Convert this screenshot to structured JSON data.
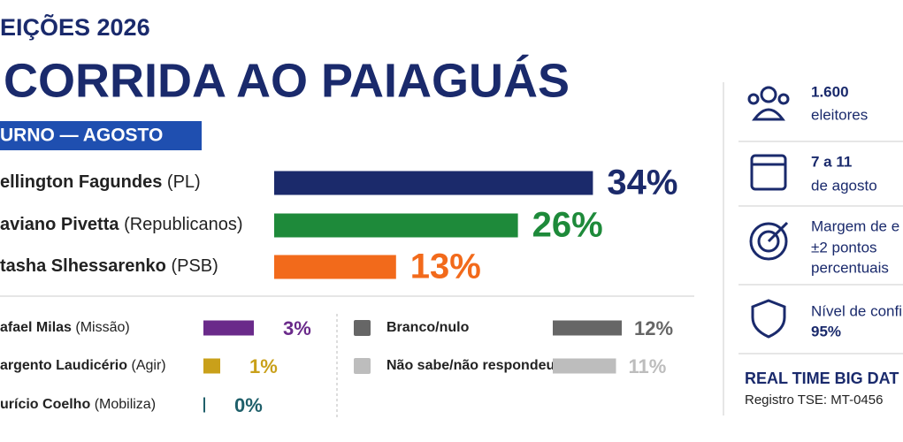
{
  "header": {
    "kicker": "EIÇÕES 2026",
    "title": "CORRIDA AO PAIAGUÁS",
    "banner": "URNO — AGOSTO"
  },
  "chart_data": [
    {
      "type": "bar",
      "orientation": "horizontal",
      "categories": [
        "ellington Fagundes",
        "aviano Pivetta",
        "tasha Slhessarenko"
      ],
      "parties": [
        "(PL)",
        "(Republicanos)",
        "(PSB)"
      ],
      "values": [
        34,
        26,
        13
      ],
      "value_labels": [
        "34%",
        "26%",
        "13%"
      ],
      "colors": [
        "#1b2a6b",
        "#1e8a3a",
        "#f26a1b"
      ]
    },
    {
      "type": "bar",
      "orientation": "horizontal",
      "categories": [
        "afael Milas",
        "argento Laudicério",
        "urício Coelho"
      ],
      "parties": [
        "(Missão)",
        "(Agir)",
        "(Mobiliza)"
      ],
      "values": [
        3,
        1,
        0
      ],
      "value_labels": [
        "3%",
        "1%",
        "0%"
      ],
      "colors": [
        "#6a2a8a",
        "#c9a01a",
        "#1f5f6a"
      ]
    },
    {
      "type": "bar",
      "orientation": "horizontal",
      "categories": [
        "Branco/nulo",
        "Não sabe/não respondeu"
      ],
      "values": [
        12,
        11
      ],
      "value_labels": [
        "12%",
        "11%"
      ],
      "colors": [
        "#666666",
        "#bdbdbd"
      ]
    }
  ],
  "sidebar": {
    "items": [
      {
        "lines": [
          "1.600",
          "eleitores"
        ]
      },
      {
        "lines": [
          "7 a 11",
          "de agosto"
        ]
      },
      {
        "lines": [
          "Margem de e",
          "±2 pontos",
          "percentuais"
        ]
      },
      {
        "lines": [
          "Nível de confi",
          "95%"
        ]
      }
    ],
    "brand": "REAL TIME BIG DAT",
    "registry": "Registro TSE: MT-0456"
  }
}
